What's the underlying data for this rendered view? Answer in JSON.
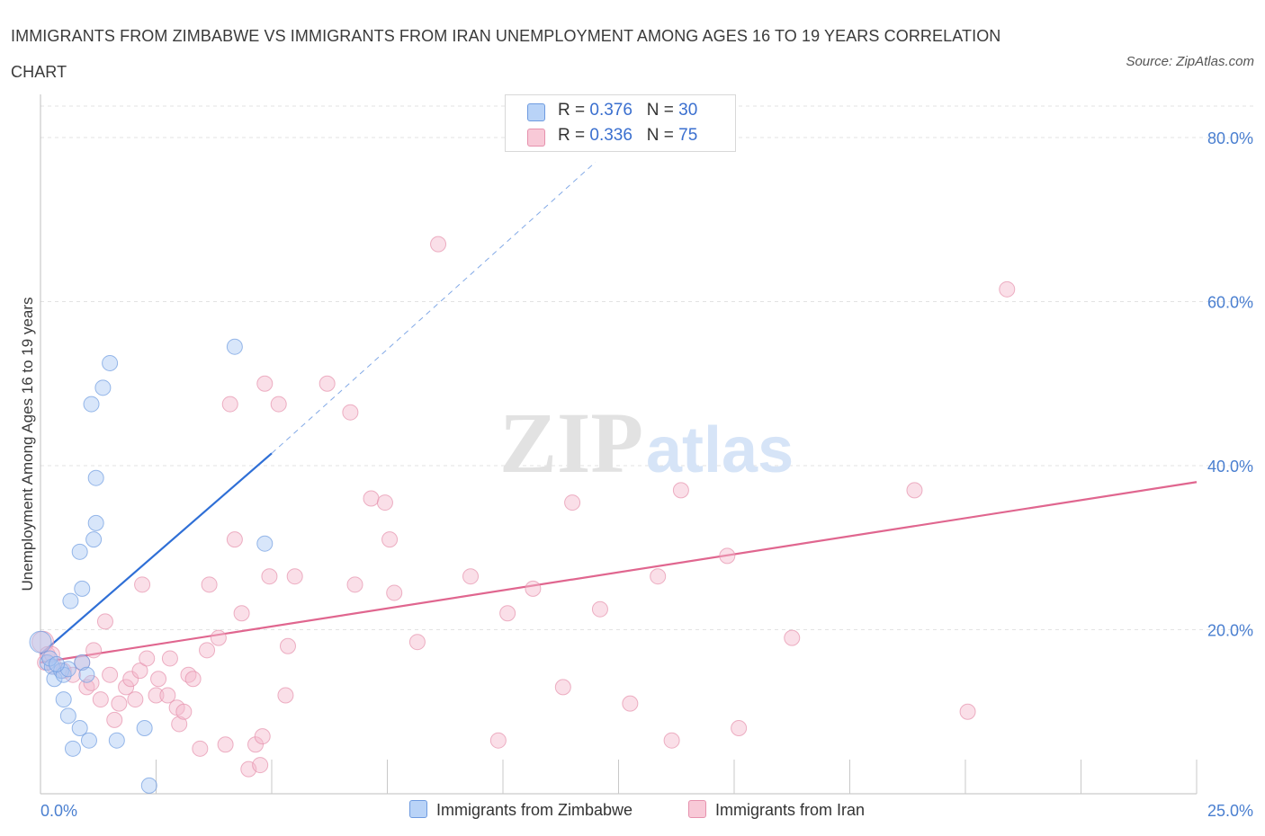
{
  "title": "IMMIGRANTS FROM ZIMBABWE VS IMMIGRANTS FROM IRAN UNEMPLOYMENT AMONG AGES 16 TO 19 YEARS CORRELATION CHART",
  "source": "Source: ZipAtlas.com",
  "legend": {
    "rows": [
      {
        "r_label": "R = ",
        "r_value": "0.376",
        "n_label": "N = ",
        "n_value": "30",
        "color": "#a9c8f5"
      },
      {
        "r_label": "R = ",
        "r_value": "0.336",
        "n_label": "N = ",
        "n_value": "75",
        "color": "#f5b8cb"
      }
    ]
  },
  "colors": {
    "zimbabwe_fill": "#a9c8f5",
    "zimbabwe_line": "#2f6fd6",
    "iran_fill": "#f5b8cb",
    "iran_line": "#e0668f",
    "tick_text": "#4a7fd0"
  },
  "chart_data": {
    "type": "scatter",
    "title": "IMMIGRANTS FROM ZIMBABWE VS IMMIGRANTS FROM IRAN UNEMPLOYMENT AMONG AGES 16 TO 19 YEARS CORRELATION CHART",
    "xlabel": "",
    "ylabel": "Unemployment Among Ages 16 to 19 years",
    "xlim": [
      0,
      25
    ],
    "ylim": [
      0,
      80
    ],
    "x_tick_labels": [
      "0.0%",
      "25.0%"
    ],
    "y_ticks": [
      20,
      40,
      60,
      80
    ],
    "y_tick_labels": [
      "20.0%",
      "40.0%",
      "60.0%",
      "80.0%"
    ],
    "grid": true,
    "legend_position": "bottom",
    "series": [
      {
        "name": "Immigrants from Zimbabwe",
        "color": "#a9c8f5",
        "points": [
          [
            0.0,
            18.5
          ],
          [
            0.15,
            16.0
          ],
          [
            0.25,
            15.5
          ],
          [
            0.3,
            14.0
          ],
          [
            0.45,
            15.0
          ],
          [
            0.5,
            14.5
          ],
          [
            0.6,
            15.2
          ],
          [
            0.9,
            16.0
          ],
          [
            0.5,
            11.5
          ],
          [
            0.6,
            9.5
          ],
          [
            0.85,
            8.0
          ],
          [
            0.7,
            5.5
          ],
          [
            1.05,
            6.5
          ],
          [
            1.65,
            6.5
          ],
          [
            2.25,
            8.0
          ],
          [
            2.35,
            1.0
          ],
          [
            0.65,
            23.5
          ],
          [
            0.9,
            25.0
          ],
          [
            0.85,
            29.5
          ],
          [
            1.15,
            31.0
          ],
          [
            1.2,
            33.0
          ],
          [
            1.2,
            38.5
          ],
          [
            1.1,
            47.5
          ],
          [
            1.35,
            49.5
          ],
          [
            1.5,
            52.5
          ],
          [
            4.2,
            54.5
          ],
          [
            4.85,
            30.5
          ],
          [
            0.2,
            16.5
          ],
          [
            0.35,
            15.8
          ],
          [
            1.0,
            14.5
          ]
        ],
        "trend": {
          "x0": 0.0,
          "y0": 17.0,
          "x1": 5.0,
          "y1": 41.5,
          "dashed_to": [
            12.0,
            77.0
          ]
        }
      },
      {
        "name": "Immigrants from Iran",
        "color": "#f5b8cb",
        "points": [
          [
            0.05,
            18.5
          ],
          [
            0.1,
            16.0
          ],
          [
            0.15,
            17.0
          ],
          [
            0.3,
            15.5
          ],
          [
            0.5,
            15.0
          ],
          [
            0.7,
            14.5
          ],
          [
            0.9,
            16.0
          ],
          [
            1.0,
            13.0
          ],
          [
            1.1,
            13.5
          ],
          [
            1.15,
            17.5
          ],
          [
            1.3,
            11.5
          ],
          [
            1.4,
            21.0
          ],
          [
            1.5,
            14.5
          ],
          [
            1.6,
            9.0
          ],
          [
            1.7,
            11.0
          ],
          [
            1.85,
            13.0
          ],
          [
            1.95,
            14.0
          ],
          [
            2.05,
            11.5
          ],
          [
            2.15,
            15.0
          ],
          [
            2.2,
            25.5
          ],
          [
            2.3,
            16.5
          ],
          [
            2.5,
            12.0
          ],
          [
            2.55,
            14.0
          ],
          [
            2.75,
            12.0
          ],
          [
            2.8,
            16.5
          ],
          [
            2.95,
            10.5
          ],
          [
            3.0,
            8.5
          ],
          [
            3.1,
            10.0
          ],
          [
            3.2,
            14.5
          ],
          [
            3.3,
            14.0
          ],
          [
            3.45,
            5.5
          ],
          [
            3.6,
            17.5
          ],
          [
            3.65,
            25.5
          ],
          [
            3.85,
            19.0
          ],
          [
            4.0,
            6.0
          ],
          [
            4.1,
            47.5
          ],
          [
            4.2,
            31.0
          ],
          [
            4.35,
            22.0
          ],
          [
            4.5,
            3.0
          ],
          [
            4.65,
            6.0
          ],
          [
            4.75,
            3.5
          ],
          [
            4.8,
            7.0
          ],
          [
            4.85,
            50.0
          ],
          [
            4.95,
            26.5
          ],
          [
            5.15,
            47.5
          ],
          [
            5.3,
            12.0
          ],
          [
            5.35,
            18.0
          ],
          [
            5.5,
            26.5
          ],
          [
            6.2,
            50.0
          ],
          [
            6.7,
            46.5
          ],
          [
            6.8,
            25.5
          ],
          [
            7.15,
            36.0
          ],
          [
            7.45,
            35.5
          ],
          [
            7.55,
            31.0
          ],
          [
            7.65,
            24.5
          ],
          [
            8.15,
            18.5
          ],
          [
            8.6,
            67.0
          ],
          [
            9.3,
            26.5
          ],
          [
            9.9,
            6.5
          ],
          [
            10.1,
            22.0
          ],
          [
            10.65,
            25.0
          ],
          [
            11.3,
            13.0
          ],
          [
            11.5,
            35.5
          ],
          [
            12.1,
            22.5
          ],
          [
            12.75,
            11.0
          ],
          [
            13.35,
            26.5
          ],
          [
            13.65,
            6.5
          ],
          [
            13.85,
            37.0
          ],
          [
            14.85,
            29.0
          ],
          [
            15.1,
            8.0
          ],
          [
            16.25,
            19.0
          ],
          [
            18.9,
            37.0
          ],
          [
            20.05,
            10.0
          ],
          [
            20.9,
            61.5
          ],
          [
            0.25,
            17.0
          ]
        ],
        "trend": {
          "x0": 0.0,
          "y0": 16.0,
          "x1": 25.0,
          "y1": 38.0
        }
      }
    ]
  },
  "bottom_legend": {
    "items": [
      {
        "label": "Immigrants from Zimbabwe",
        "color": "#a9c8f5"
      },
      {
        "label": "Immigrants from Iran",
        "color": "#f5b8cb"
      }
    ]
  }
}
